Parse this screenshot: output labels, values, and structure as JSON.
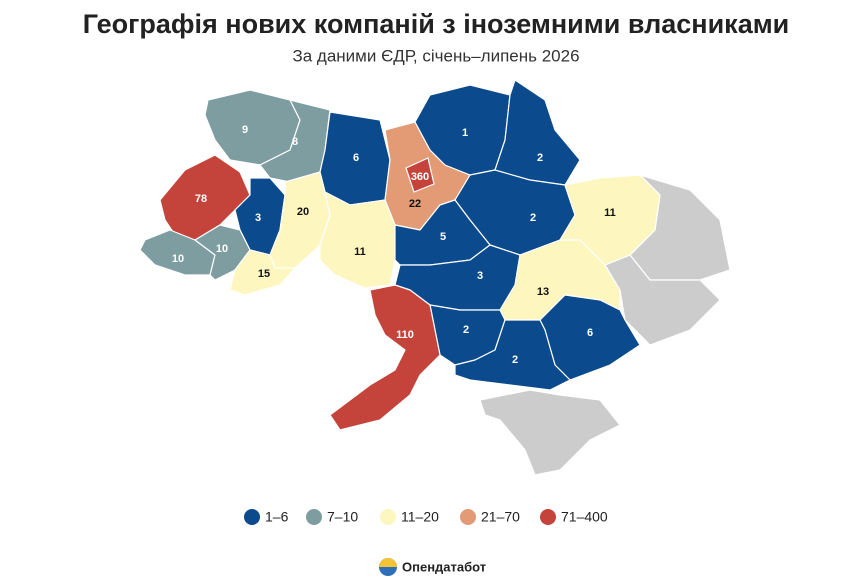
{
  "title": "Географія нових компаній з іноземними власниками",
  "subtitle": "За даними ЄДР, січень–липень 2026",
  "regions": [
    {
      "value": 9,
      "color": "#7d9da1"
    },
    {
      "value": 8,
      "color": "#7d9da1"
    },
    {
      "value": 6,
      "color": "#0b4a8c"
    },
    {
      "value": 360,
      "color": "#c4443b"
    },
    {
      "value": 22,
      "color": "#e39b76"
    },
    {
      "value": 1,
      "color": "#0b4a8c"
    },
    {
      "value": 2,
      "color": "#0b4a8c"
    },
    {
      "value": 2,
      "color": "#0b4a8c"
    },
    {
      "value": 11,
      "color": "#fdf6bf"
    },
    {
      "value": 78,
      "color": "#c4443b"
    },
    {
      "value": 3,
      "color": "#0b4a8c"
    },
    {
      "value": 20,
      "color": "#fdf6bf"
    },
    {
      "value": 10,
      "color": "#7d9da1"
    },
    {
      "value": 10,
      "color": "#7d9da1"
    },
    {
      "value": 15,
      "color": "#fdf6bf"
    },
    {
      "value": 11,
      "color": "#fdf6bf"
    },
    {
      "value": 5,
      "color": "#0b4a8c"
    },
    {
      "value": 3,
      "color": "#0b4a8c"
    },
    {
      "value": 13,
      "color": "#fdf6bf"
    },
    {
      "value": 6,
      "color": "#0b4a8c"
    },
    {
      "value": 2,
      "color": "#0b4a8c"
    },
    {
      "value": 2,
      "color": "#0b4a8c"
    },
    {
      "value": 110,
      "color": "#c4443b"
    }
  ],
  "legend": [
    {
      "label": "1–6",
      "color": "#0b4a8c"
    },
    {
      "label": "7–10",
      "color": "#7d9da1"
    },
    {
      "label": "11–20",
      "color": "#fdf6bf"
    },
    {
      "label": "21–70",
      "color": "#e39b76"
    },
    {
      "label": "71–400",
      "color": "#c4443b"
    }
  ],
  "source": "Опендатабот"
}
